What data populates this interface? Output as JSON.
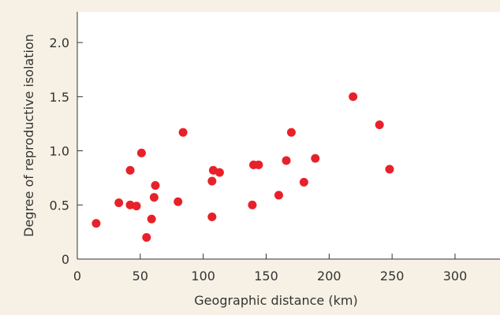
{
  "colors": {
    "background": "#f6f1e4",
    "plot_background": "#ffffff",
    "axis": "#333333",
    "point": "#e8202a"
  },
  "chart_data": {
    "type": "scatter",
    "title": "",
    "xlabel": "Geographic distance (km)",
    "ylabel": "Degree of reproductive isolation",
    "xlim": [
      0,
      330
    ],
    "ylim": [
      0,
      2.35
    ],
    "x_ticks": [
      0,
      50,
      100,
      150,
      200,
      250,
      300
    ],
    "y_ticks": [
      0,
      0.5,
      1.0,
      1.5,
      2.0
    ],
    "x_tick_labels": [
      "0",
      "50",
      "100",
      "150",
      "200",
      "250",
      "300"
    ],
    "y_tick_labels": [
      "0",
      "0.5",
      "1.0",
      "1.5",
      "2.0"
    ],
    "grid": false,
    "legend": "none",
    "series": [
      {
        "points": [
          [
            15,
            0.33
          ],
          [
            33,
            0.52
          ],
          [
            42,
            0.82
          ],
          [
            42,
            0.5
          ],
          [
            47,
            0.49
          ],
          [
            51,
            0.98
          ],
          [
            55,
            0.2
          ],
          [
            59,
            0.37
          ],
          [
            61,
            0.57
          ],
          [
            62,
            0.68
          ],
          [
            80,
            0.53
          ],
          [
            84,
            1.17
          ],
          [
            107,
            0.39
          ],
          [
            107,
            0.72
          ],
          [
            108,
            0.82
          ],
          [
            113,
            0.8
          ],
          [
            139,
            0.5
          ],
          [
            140,
            0.87
          ],
          [
            144,
            0.87
          ],
          [
            160,
            0.59
          ],
          [
            166,
            0.91
          ],
          [
            170,
            1.17
          ],
          [
            180,
            0.71
          ],
          [
            189,
            0.93
          ],
          [
            219,
            1.5
          ],
          [
            240,
            1.24
          ],
          [
            248,
            0.83
          ]
        ]
      }
    ]
  }
}
